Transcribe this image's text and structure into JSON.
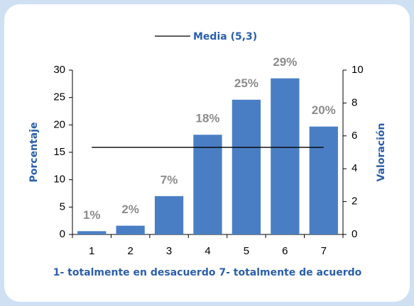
{
  "chart_data": {
    "type": "bar",
    "categories": [
      "1",
      "2",
      "3",
      "4",
      "5",
      "6",
      "7"
    ],
    "series": [
      {
        "type": "bar",
        "color": "#4a7ec4",
        "values": [
          0.6,
          1.6,
          7,
          18.2,
          24.6,
          28.5,
          19.7
        ],
        "value_labels": [
          "1%",
          "2%",
          "7%",
          "18%",
          "25%",
          "29%",
          "20%"
        ]
      },
      {
        "type": "line",
        "name": "Media (5,3)",
        "axis": "y2",
        "color": "#000000",
        "values": [
          5.3,
          5.3,
          5.3,
          5.3,
          5.3,
          5.3,
          5.3
        ]
      }
    ],
    "ylabel": "Porcentaje",
    "y2label": "Valoración",
    "xlabel": "1- totalmente en desacuerdo 7- totalmente de acuerdo",
    "ylim": [
      0,
      30
    ],
    "yticks": [
      0,
      5,
      10,
      15,
      20,
      25,
      30
    ],
    "y2lim": [
      0,
      10
    ],
    "y2ticks": [
      0,
      2,
      4,
      6,
      8,
      10
    ],
    "legend": "top"
  }
}
